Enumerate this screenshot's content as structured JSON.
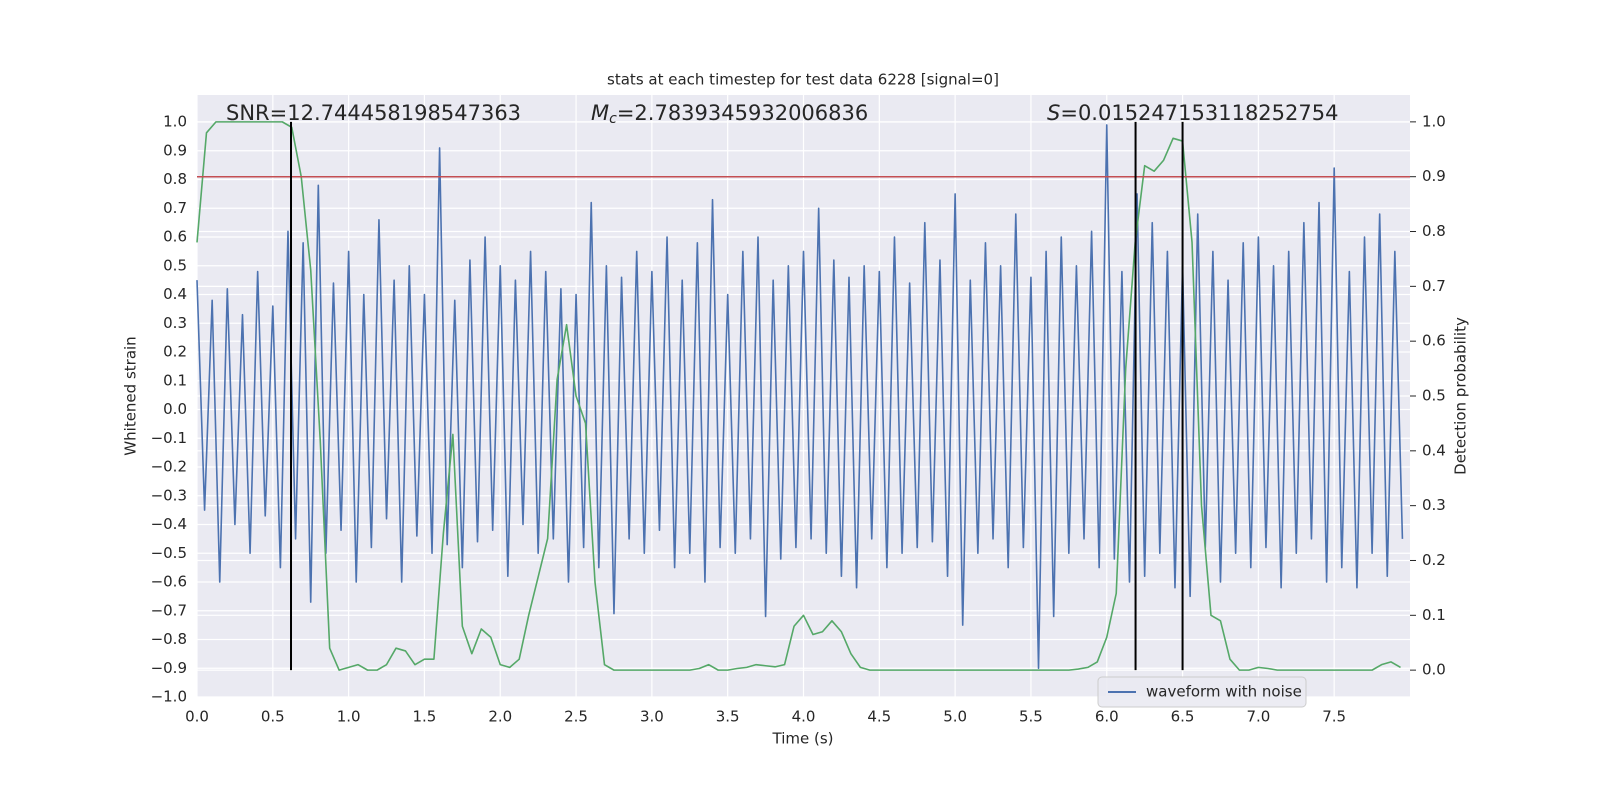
{
  "chart_data": {
    "type": "line",
    "title": "stats at each timestep for test data 6228 [signal=0]",
    "xlabel": "Time (s)",
    "ylabel": "Whitened strain",
    "y2label": "Detection probability",
    "annotations": [
      [
        "SNR=12.744458198547363"
      ],
      [
        "M",
        "c",
        "=2.7839345932006836"
      ],
      [
        "S",
        "=0.015247153118252754"
      ]
    ],
    "xlim": [
      0,
      8
    ],
    "ylim": [
      -1.0,
      1.094
    ],
    "y2lim": [
      -0.049,
      1.049
    ],
    "xticks": [
      {
        "value": 0,
        "label": "0.0"
      },
      {
        "value": 0.5,
        "label": "0.5"
      },
      {
        "value": 1,
        "label": "1.0"
      },
      {
        "value": 1.5,
        "label": "1.5"
      },
      {
        "value": 2,
        "label": "2.0"
      },
      {
        "value": 2.5,
        "label": "2.5"
      },
      {
        "value": 3,
        "label": "3.0"
      },
      {
        "value": 3.5,
        "label": "3.5"
      },
      {
        "value": 4,
        "label": "4.0"
      },
      {
        "value": 4.5,
        "label": "4.5"
      },
      {
        "value": 5,
        "label": "5.0"
      },
      {
        "value": 5.5,
        "label": "5.5"
      },
      {
        "value": 6,
        "label": "6.0"
      },
      {
        "value": 6.5,
        "label": "6.5"
      },
      {
        "value": 7,
        "label": "7.0"
      },
      {
        "value": 7.5,
        "label": "7.5"
      }
    ],
    "yticks": [
      {
        "value": -1.0,
        "label": "−1.0"
      },
      {
        "value": -0.9,
        "label": "−0.9"
      },
      {
        "value": -0.8,
        "label": "−0.8"
      },
      {
        "value": -0.7,
        "label": "−0.7"
      },
      {
        "value": -0.6,
        "label": "−0.6"
      },
      {
        "value": -0.5,
        "label": "−0.5"
      },
      {
        "value": -0.4,
        "label": "−0.4"
      },
      {
        "value": -0.3,
        "label": "−0.3"
      },
      {
        "value": -0.2,
        "label": "−0.2"
      },
      {
        "value": -0.1,
        "label": "−0.1"
      },
      {
        "value": 0,
        "label": "0.0"
      },
      {
        "value": 0.1,
        "label": "0.1"
      },
      {
        "value": 0.2,
        "label": "0.2"
      },
      {
        "value": 0.3,
        "label": "0.3"
      },
      {
        "value": 0.4,
        "label": "0.4"
      },
      {
        "value": 0.5,
        "label": "0.5"
      },
      {
        "value": 0.6,
        "label": "0.6"
      },
      {
        "value": 0.7,
        "label": "0.7"
      },
      {
        "value": 0.8,
        "label": "0.8"
      },
      {
        "value": 0.9,
        "label": "0.9"
      },
      {
        "value": 1.0,
        "label": "1.0"
      }
    ],
    "y2ticks": [
      {
        "value": 0,
        "label": "0.0"
      },
      {
        "value": 0.1,
        "label": "0.1"
      },
      {
        "value": 0.2,
        "label": "0.2"
      },
      {
        "value": 0.3,
        "label": "0.3"
      },
      {
        "value": 0.4,
        "label": "0.4"
      },
      {
        "value": 0.5,
        "label": "0.5"
      },
      {
        "value": 0.6,
        "label": "0.6"
      },
      {
        "value": 0.7,
        "label": "0.7"
      },
      {
        "value": 0.8,
        "label": "0.8"
      },
      {
        "value": 0.9,
        "label": "0.9"
      },
      {
        "value": 1.0,
        "label": "1.0"
      }
    ],
    "grid": true,
    "legend": "lower right",
    "threshold": {
      "value": 0.9,
      "axis": "y2",
      "color": "#c44e52"
    },
    "vlines": {
      "x": [
        0.62,
        6.19,
        6.5
      ],
      "ymin": 0,
      "ymax": 1,
      "axis": "y2",
      "color": "#000000"
    },
    "series": [
      {
        "name": "waveform with noise",
        "color": "#4c72b0",
        "axis": "y",
        "x": [
          0,
          0.05,
          0.1,
          0.15,
          0.2,
          0.25,
          0.3,
          0.35,
          0.4,
          0.45,
          0.5,
          0.55,
          0.6,
          0.65,
          0.7,
          0.75,
          0.8,
          0.85,
          0.9,
          0.95,
          1,
          1.05,
          1.1,
          1.15,
          1.2,
          1.25,
          1.3,
          1.35,
          1.4,
          1.45,
          1.5,
          1.55,
          1.6,
          1.65,
          1.7,
          1.75,
          1.8,
          1.85,
          1.9,
          1.95,
          2,
          2.05,
          2.1,
          2.15,
          2.2,
          2.25,
          2.3,
          2.35,
          2.4,
          2.45,
          2.5,
          2.55,
          2.6,
          2.65,
          2.7,
          2.75,
          2.8,
          2.85,
          2.9,
          2.95,
          3,
          3.05,
          3.1,
          3.15,
          3.2,
          3.25,
          3.3,
          3.35,
          3.4,
          3.45,
          3.5,
          3.55,
          3.6,
          3.65,
          3.7,
          3.75,
          3.8,
          3.85,
          3.9,
          3.95,
          4,
          4.05,
          4.1,
          4.15,
          4.2,
          4.25,
          4.3,
          4.35,
          4.4,
          4.45,
          4.5,
          4.55,
          4.6,
          4.65,
          4.7,
          4.75,
          4.8,
          4.85,
          4.9,
          4.95,
          5,
          5.05,
          5.1,
          5.15,
          5.2,
          5.25,
          5.3,
          5.35,
          5.4,
          5.45,
          5.5,
          5.55,
          5.6,
          5.65,
          5.7,
          5.75,
          5.8,
          5.85,
          5.9,
          5.95,
          6,
          6.05,
          6.1,
          6.15,
          6.2,
          6.25,
          6.3,
          6.35,
          6.4,
          6.45,
          6.5,
          6.55,
          6.6,
          6.65,
          6.7,
          6.75,
          6.8,
          6.85,
          6.9,
          6.95,
          7,
          7.05,
          7.1,
          7.15,
          7.2,
          7.25,
          7.3,
          7.35,
          7.4,
          7.45,
          7.5,
          7.55,
          7.6,
          7.65,
          7.7,
          7.75,
          7.8,
          7.85,
          7.9,
          7.95
        ],
        "values": [
          0.45,
          -0.35,
          0.38,
          -0.6,
          0.42,
          -0.4,
          0.33,
          -0.5,
          0.48,
          -0.37,
          0.36,
          -0.55,
          0.62,
          -0.45,
          0.58,
          -0.67,
          0.78,
          -0.5,
          0.44,
          -0.42,
          0.55,
          -0.6,
          0.4,
          -0.48,
          0.66,
          -0.38,
          0.45,
          -0.6,
          0.5,
          -0.44,
          0.4,
          -0.5,
          0.91,
          -0.47,
          0.38,
          -0.55,
          0.52,
          -0.46,
          0.6,
          -0.42,
          0.5,
          -0.58,
          0.45,
          -0.4,
          0.55,
          -0.5,
          0.48,
          -0.45,
          0.42,
          -0.6,
          0.4,
          -0.48,
          0.72,
          -0.55,
          0.5,
          -0.71,
          0.46,
          -0.45,
          0.55,
          -0.5,
          0.48,
          -0.42,
          0.6,
          -0.55,
          0.45,
          -0.5,
          0.58,
          -0.6,
          0.73,
          -0.48,
          0.4,
          -0.5,
          0.55,
          -0.45,
          0.6,
          -0.72,
          0.45,
          -0.52,
          0.5,
          -0.48,
          0.55,
          -0.45,
          0.7,
          -0.5,
          0.52,
          -0.58,
          0.46,
          -0.62,
          0.5,
          -0.45,
          0.48,
          -0.55,
          0.6,
          -0.5,
          0.44,
          -0.48,
          0.65,
          -0.46,
          0.52,
          -0.58,
          0.75,
          -0.75,
          0.45,
          -0.5,
          0.58,
          -0.45,
          0.5,
          -0.55,
          0.68,
          -0.48,
          0.46,
          -0.9,
          0.55,
          -0.72,
          0.6,
          -0.5,
          0.5,
          -0.45,
          0.62,
          -0.55,
          0.99,
          -0.52,
          0.48,
          -0.6,
          0.75,
          -0.58,
          0.65,
          -0.5,
          0.55,
          -0.62,
          0.5,
          -0.65,
          0.68,
          -0.48,
          0.55,
          -0.6,
          0.45,
          -0.5,
          0.58,
          -0.55,
          0.6,
          -0.48,
          0.5,
          -0.62,
          0.55,
          -0.5,
          0.65,
          -0.45,
          0.72,
          -0.6,
          0.84,
          -0.55,
          0.48,
          -0.62,
          0.6,
          -0.5,
          0.68,
          -0.58,
          0.55,
          -0.45
        ]
      },
      {
        "color": "#55a868",
        "axis": "y2",
        "x": [
          0,
          0.0625,
          0.125,
          0.1875,
          0.25,
          0.3125,
          0.375,
          0.4375,
          0.5,
          0.5625,
          0.625,
          0.6875,
          0.75,
          0.8125,
          0.875,
          0.9375,
          1,
          1.0625,
          1.125,
          1.1875,
          1.25,
          1.3125,
          1.375,
          1.4375,
          1.5,
          1.5625,
          1.625,
          1.6875,
          1.75,
          1.8125,
          1.875,
          1.9375,
          2,
          2.0625,
          2.125,
          2.1875,
          2.25,
          2.3125,
          2.375,
          2.4375,
          2.5,
          2.5625,
          2.625,
          2.6875,
          2.75,
          2.8125,
          2.875,
          2.9375,
          3,
          3.0625,
          3.125,
          3.1875,
          3.25,
          3.3125,
          3.375,
          3.4375,
          3.5,
          3.5625,
          3.625,
          3.6875,
          3.75,
          3.8125,
          3.875,
          3.9375,
          4,
          4.0625,
          4.125,
          4.1875,
          4.25,
          4.3125,
          4.375,
          4.4375,
          4.5,
          4.5625,
          4.625,
          4.6875,
          4.75,
          4.8125,
          4.875,
          4.9375,
          5,
          5.0625,
          5.125,
          5.1875,
          5.25,
          5.3125,
          5.375,
          5.4375,
          5.5,
          5.5625,
          5.625,
          5.6875,
          5.75,
          5.8125,
          5.875,
          5.9375,
          6,
          6.0625,
          6.125,
          6.1875,
          6.25,
          6.3125,
          6.375,
          6.4375,
          6.5,
          6.5625,
          6.625,
          6.6875,
          6.75,
          6.8125,
          6.875,
          6.9375,
          7,
          7.0625,
          7.125,
          7.1875,
          7.25,
          7.3125,
          7.375,
          7.4375,
          7.5,
          7.5625,
          7.625,
          7.6875,
          7.75,
          7.8125,
          7.875,
          7.9375
        ],
        "values": [
          0.78,
          0.98,
          1.0,
          1.0,
          1.0,
          1.0,
          1.0,
          1.0,
          1.0,
          1.0,
          0.99,
          0.9,
          0.73,
          0.42,
          0.04,
          0.0,
          0.005,
          0.01,
          0.0,
          0.0,
          0.01,
          0.04,
          0.035,
          0.01,
          0.02,
          0.02,
          0.25,
          0.43,
          0.08,
          0.03,
          0.075,
          0.06,
          0.01,
          0.005,
          0.02,
          0.1,
          0.17,
          0.24,
          0.53,
          0.63,
          0.5,
          0.45,
          0.16,
          0.01,
          0.0,
          0.0,
          0.0,
          0.0,
          0.0,
          0.0,
          0.0,
          0.0,
          0.0,
          0.003,
          0.01,
          0.0,
          0.0,
          0.003,
          0.005,
          0.01,
          0.008,
          0.006,
          0.01,
          0.08,
          0.1,
          0.065,
          0.07,
          0.09,
          0.07,
          0.03,
          0.005,
          0.0,
          0.0,
          0.0,
          0.0,
          0.0,
          0.0,
          0.0,
          0.0,
          0.0,
          0.0,
          0.0,
          0.0,
          0.0,
          0.0,
          0.0,
          0.0,
          0.0,
          0.0,
          0.0,
          0.0,
          0.0,
          0.0,
          0.002,
          0.005,
          0.015,
          0.06,
          0.14,
          0.55,
          0.78,
          0.92,
          0.91,
          0.93,
          0.97,
          0.965,
          0.78,
          0.3,
          0.1,
          0.09,
          0.02,
          0.0,
          0.0,
          0.005,
          0.003,
          0.0,
          0.0,
          0.0,
          0.0,
          0.0,
          0.0,
          0.0,
          0.0,
          0.0,
          0.0,
          0.0,
          0.01,
          0.015,
          0.005
        ]
      }
    ]
  }
}
